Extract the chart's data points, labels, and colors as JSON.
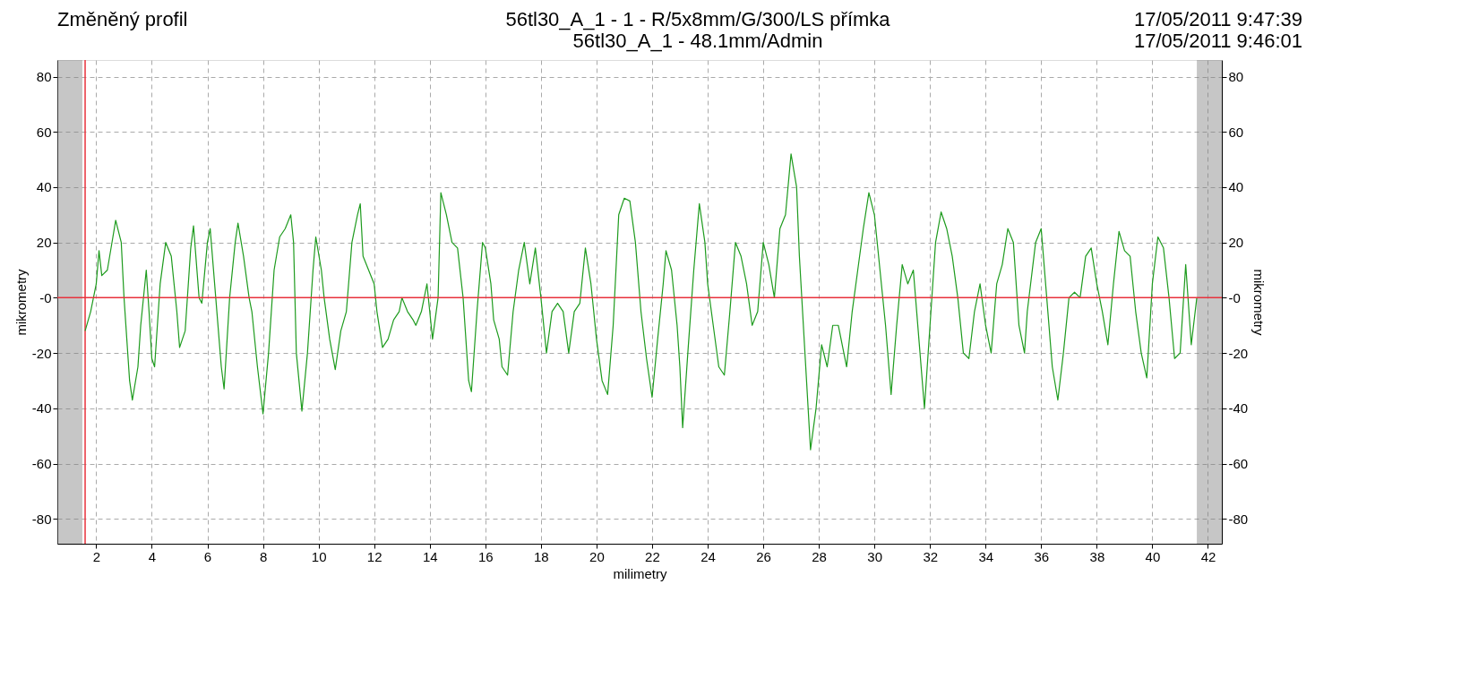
{
  "chart_data": {
    "type": "line",
    "title": "Změněný profil",
    "subtitle": "56tl30_A_1 - 1 - R/5x8mm/G/300/LS přímka\n56tl30_A_1 - 48.1mm/Admin",
    "annotations": [
      "17/05/2011 9:47:39",
      "17/05/2011 9:46:01"
    ],
    "xlabel": "milimetry",
    "ylabel": "mikrometry",
    "y2label": "mikrometry",
    "xlim": [
      0.6,
      42.5
    ],
    "xticks": [
      2,
      4,
      6,
      8,
      10,
      12,
      14,
      16,
      18,
      20,
      22,
      24,
      26,
      28,
      30,
      32,
      34,
      36,
      38,
      40,
      42
    ],
    "ylim": [
      -89,
      86
    ],
    "yticks": [
      -80,
      -60,
      -40,
      -20,
      {
        "value": 0,
        "label": "-0"
      },
      20,
      40,
      60,
      80
    ],
    "y2lim": [
      -89,
      86
    ],
    "y2ticks": [
      -80,
      -60,
      -40,
      -20,
      {
        "value": 0,
        "label": "-0"
      },
      20,
      40,
      60,
      80
    ],
    "grid": true,
    "line_style": "solid",
    "marker": "none",
    "ref_lines": [
      {
        "axis": "y",
        "value": 0,
        "color": "#e8323c"
      },
      {
        "axis": "x",
        "value": 1.6,
        "color": "#e8323c"
      }
    ],
    "bands": [
      {
        "axis": "x",
        "from": 0.6,
        "to": 1.5,
        "color": "#808080"
      },
      {
        "axis": "x",
        "from": 41.6,
        "to": 42.5,
        "color": "#808080"
      }
    ],
    "series": [
      {
        "color": "#1e9b1e",
        "x": [
          1.6,
          1.8,
          2.0,
          2.1,
          2.2,
          2.4,
          2.6,
          2.7,
          2.9,
          3.0,
          3.2,
          3.3,
          3.5,
          3.6,
          3.8,
          3.9,
          4.0,
          4.1,
          4.3,
          4.5,
          4.7,
          4.9,
          5.0,
          5.2,
          5.4,
          5.5,
          5.7,
          5.8,
          6.0,
          6.1,
          6.3,
          6.5,
          6.6,
          6.8,
          7.0,
          7.1,
          7.3,
          7.5,
          7.6,
          7.8,
          8.0,
          8.2,
          8.4,
          8.6,
          8.8,
          9.0,
          9.1,
          9.2,
          9.4,
          9.6,
          9.8,
          9.9,
          10.1,
          10.2,
          10.4,
          10.6,
          10.8,
          11.0,
          11.2,
          11.4,
          11.5,
          11.6,
          11.8,
          12.0,
          12.1,
          12.3,
          12.5,
          12.7,
          12.9,
          13.0,
          13.2,
          13.4,
          13.5,
          13.7,
          13.9,
          14.0,
          14.1,
          14.3,
          14.4,
          14.6,
          14.8,
          15.0,
          15.2,
          15.4,
          15.5,
          15.7,
          15.9,
          16.0,
          16.2,
          16.3,
          16.5,
          16.6,
          16.8,
          17.0,
          17.2,
          17.4,
          17.6,
          17.8,
          18.0,
          18.2,
          18.4,
          18.6,
          18.8,
          19.0,
          19.2,
          19.4,
          19.6,
          19.8,
          20.0,
          20.2,
          20.4,
          20.6,
          20.8,
          21.0,
          21.2,
          21.4,
          21.6,
          21.8,
          22.0,
          22.2,
          22.4,
          22.5,
          22.7,
          22.9,
          23.0,
          23.1,
          23.3,
          23.5,
          23.7,
          23.9,
          24.0,
          24.2,
          24.4,
          24.6,
          24.8,
          25.0,
          25.2,
          25.4,
          25.6,
          25.8,
          26.0,
          26.2,
          26.4,
          26.6,
          26.8,
          27.0,
          27.2,
          27.3,
          27.5,
          27.7,
          27.9,
          28.1,
          28.3,
          28.5,
          28.7,
          29.0,
          29.2,
          29.4,
          29.6,
          29.8,
          30.0,
          30.2,
          30.4,
          30.6,
          30.8,
          31.0,
          31.2,
          31.4,
          31.6,
          31.8,
          32.0,
          32.2,
          32.4,
          32.6,
          32.8,
          33.0,
          33.2,
          33.4,
          33.6,
          33.8,
          34.0,
          34.2,
          34.4,
          34.6,
          34.8,
          35.0,
          35.2,
          35.4,
          35.5,
          35.8,
          36.0,
          36.2,
          36.4,
          36.6,
          36.8,
          37.0,
          37.2,
          37.4,
          37.6,
          37.8,
          38.0,
          38.2,
          38.4,
          38.6,
          38.8,
          39.0,
          39.2,
          39.4,
          39.6,
          39.8,
          40.0,
          40.2,
          40.4,
          40.6,
          40.8,
          41.0,
          41.2,
          41.4,
          41.6
        ],
        "values": [
          -12,
          -5,
          5,
          17,
          8,
          10,
          22,
          28,
          20,
          0,
          -30,
          -37,
          -25,
          -10,
          10,
          -5,
          -22,
          -25,
          5,
          20,
          15,
          -5,
          -18,
          -12,
          18,
          26,
          0,
          -2,
          20,
          25,
          0,
          -25,
          -33,
          0,
          20,
          27,
          15,
          0,
          -5,
          -25,
          -42,
          -20,
          10,
          22,
          25,
          30,
          20,
          -20,
          -41,
          -20,
          10,
          22,
          10,
          0,
          -15,
          -26,
          -12,
          -5,
          20,
          30,
          34,
          15,
          10,
          5,
          -5,
          -18,
          -15,
          -8,
          -5,
          0,
          -5,
          -8,
          -10,
          -5,
          5,
          -5,
          -15,
          0,
          38,
          30,
          20,
          18,
          0,
          -30,
          -34,
          -5,
          20,
          18,
          5,
          -8,
          -15,
          -25,
          -28,
          -5,
          10,
          20,
          5,
          18,
          0,
          -20,
          -5,
          -2,
          -5,
          -20,
          -5,
          -2,
          18,
          5,
          -15,
          -30,
          -35,
          -10,
          30,
          36,
          35,
          20,
          -5,
          -22,
          -36,
          -15,
          5,
          17,
          10,
          -10,
          -25,
          -47,
          -18,
          10,
          34,
          20,
          5,
          -10,
          -25,
          -28,
          -5,
          20,
          15,
          5,
          -10,
          -5,
          20,
          12,
          0,
          25,
          30,
          52,
          40,
          15,
          -20,
          -55,
          -40,
          -17,
          -25,
          -10,
          -10,
          -25,
          -5,
          10,
          25,
          38,
          30,
          10,
          -10,
          -35,
          -10,
          12,
          5,
          10,
          -15,
          -40,
          -10,
          20,
          31,
          25,
          15,
          0,
          -20,
          -22,
          -5,
          5,
          -10,
          -20,
          5,
          12,
          25,
          20,
          -10,
          -20,
          -5,
          20,
          25,
          0,
          -25,
          -37,
          -20,
          0,
          2,
          0,
          15,
          18,
          5,
          -5,
          -17,
          5,
          24,
          17,
          15,
          -5,
          -20,
          -29,
          5,
          22,
          18,
          0,
          -22,
          -20,
          12,
          -17,
          0
        ]
      }
    ]
  }
}
